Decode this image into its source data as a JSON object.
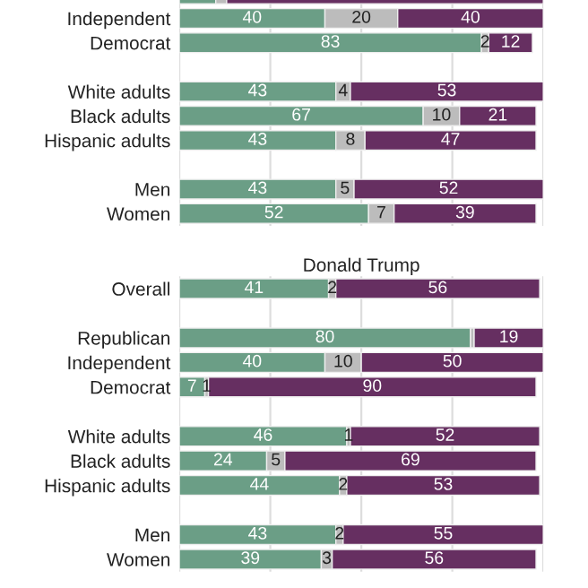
{
  "chart_data": [
    {
      "type": "bar",
      "orientation": "horizontal",
      "stacked": true,
      "categories": [
        null,
        "Independent",
        "Democrat",
        null,
        "White adults",
        "Black adults",
        "Hispanic adults",
        null,
        "Men",
        "Women"
      ],
      "series": [
        {
          "color": "#6b9e86",
          "values": [
            10,
            40,
            83,
            null,
            43,
            67,
            43,
            null,
            43,
            52
          ],
          "value_labels": [
            null,
            "40",
            "83",
            null,
            "43",
            "67",
            "43",
            null,
            "43",
            "52"
          ]
        },
        {
          "color": "#bcbcbc",
          "values": [
            3,
            20,
            2,
            null,
            4,
            10,
            8,
            null,
            5,
            7
          ],
          "value_labels": [
            null,
            "20",
            "2",
            null,
            "4",
            "10",
            "8",
            null,
            "5",
            "7"
          ]
        },
        {
          "color": "#662f61",
          "values": [
            87,
            40,
            12,
            null,
            53,
            21,
            47,
            null,
            52,
            39
          ],
          "value_labels": [
            null,
            "40",
            "12",
            null,
            "53",
            "21",
            "47",
            null,
            "52",
            "39"
          ]
        }
      ],
      "xlim": [
        0,
        100
      ],
      "xticks": [
        {
          "value": 0,
          "label": null
        },
        {
          "value": 25,
          "label": null
        },
        {
          "value": 50,
          "label": null
        },
        {
          "value": 75,
          "label": null
        },
        {
          "value": 100,
          "label": null
        }
      ],
      "grid": "x",
      "tick_labels": "y"
    },
    {
      "type": "bar",
      "orientation": "horizontal",
      "stacked": true,
      "title": "Donald Trump",
      "categories": [
        "Overall",
        null,
        "Republican",
        "Independent",
        "Democrat",
        null,
        "White adults",
        "Black adults",
        "Hispanic adults",
        null,
        "Men",
        "Women"
      ],
      "series": [
        {
          "color": "#6b9e86",
          "values": [
            41,
            null,
            80,
            40,
            7,
            null,
            46,
            24,
            44,
            null,
            43,
            39
          ],
          "value_labels": [
            "41",
            null,
            "80",
            "40",
            "7",
            null,
            "46",
            "24",
            "44",
            null,
            "43",
            "39"
          ]
        },
        {
          "color": "#bcbcbc",
          "values": [
            2,
            null,
            1,
            10,
            1,
            null,
            1,
            5,
            2,
            null,
            2,
            3
          ],
          "value_labels": [
            "2",
            null,
            null,
            "10",
            "1",
            null,
            "1",
            "5",
            "2",
            null,
            "2",
            "3"
          ]
        },
        {
          "color": "#662f61",
          "values": [
            56,
            null,
            19,
            50,
            90,
            null,
            52,
            69,
            53,
            null,
            55,
            56
          ],
          "value_labels": [
            "56",
            null,
            "19",
            "50",
            "90",
            null,
            "52",
            "69",
            "53",
            null,
            "55",
            "56"
          ]
        }
      ],
      "xlim": [
        0,
        100
      ],
      "xticks": [
        {
          "value": 0,
          "label": null
        },
        {
          "value": 25,
          "label": null
        },
        {
          "value": 50,
          "label": null
        },
        {
          "value": 75,
          "label": null
        },
        {
          "value": 100,
          "label": null
        }
      ],
      "grid": "x",
      "tick_labels": "y"
    }
  ]
}
